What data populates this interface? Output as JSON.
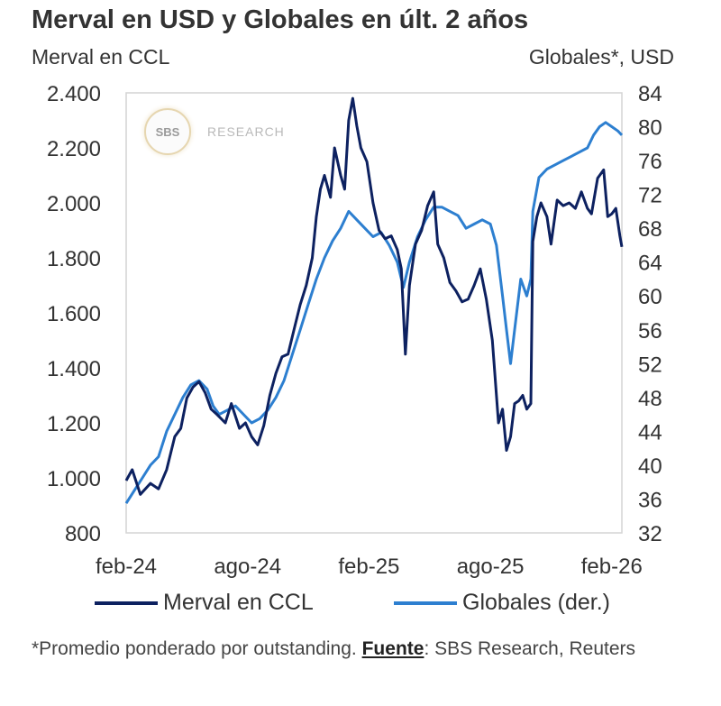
{
  "title": "Merval en USD y Globales en últ. 2 años",
  "left_axis_label": "Merval en CCL",
  "right_axis_label": "Globales*, USD",
  "logo": {
    "badge": "SBS",
    "text": "RESEARCH"
  },
  "legend": [
    {
      "label": "Merval en CCL",
      "color": "#0d2160"
    },
    {
      "label": "Globales (der.)",
      "color": "#2d7fd0"
    }
  ],
  "footnote": {
    "prefix": "*Promedio ponderado por outstanding.",
    "source_label": "Fuente",
    "source": ": SBS Research, Reuters"
  },
  "chart_data": {
    "type": "line",
    "x_ticks": [
      "feb-24",
      "ago-24",
      "feb-25",
      "ago-25",
      "feb-26"
    ],
    "x_range": [
      0,
      24.5
    ],
    "y_left": {
      "min": 800,
      "max": 2400,
      "ticks": [
        "800",
        "1.000",
        "1.200",
        "1.400",
        "1.600",
        "1.800",
        "2.000",
        "2.200",
        "2.400"
      ]
    },
    "y_right": {
      "min": 32,
      "max": 84,
      "ticks": [
        "32",
        "36",
        "40",
        "44",
        "48",
        "52",
        "56",
        "60",
        "64",
        "68",
        "72",
        "76",
        "80",
        "84"
      ]
    },
    "grid": false,
    "series": [
      {
        "name": "Merval en CCL",
        "axis": "left",
        "color": "#0d2160",
        "points": [
          [
            0,
            990
          ],
          [
            0.3,
            1030
          ],
          [
            0.7,
            940
          ],
          [
            1.2,
            980
          ],
          [
            1.6,
            960
          ],
          [
            2.0,
            1030
          ],
          [
            2.4,
            1150
          ],
          [
            2.7,
            1180
          ],
          [
            3.0,
            1290
          ],
          [
            3.3,
            1330
          ],
          [
            3.6,
            1350
          ],
          [
            3.9,
            1310
          ],
          [
            4.2,
            1250
          ],
          [
            4.5,
            1230
          ],
          [
            4.9,
            1200
          ],
          [
            5.2,
            1270
          ],
          [
            5.6,
            1180
          ],
          [
            5.9,
            1200
          ],
          [
            6.2,
            1150
          ],
          [
            6.5,
            1120
          ],
          [
            6.8,
            1190
          ],
          [
            7.1,
            1300
          ],
          [
            7.4,
            1380
          ],
          [
            7.7,
            1440
          ],
          [
            8.0,
            1450
          ],
          [
            8.3,
            1540
          ],
          [
            8.6,
            1630
          ],
          [
            8.9,
            1700
          ],
          [
            9.2,
            1800
          ],
          [
            9.4,
            1950
          ],
          [
            9.6,
            2050
          ],
          [
            9.8,
            2100
          ],
          [
            10.1,
            2020
          ],
          [
            10.3,
            2200
          ],
          [
            10.6,
            2100
          ],
          [
            10.8,
            2050
          ],
          [
            11.0,
            2300
          ],
          [
            11.2,
            2380
          ],
          [
            11.4,
            2280
          ],
          [
            11.6,
            2200
          ],
          [
            11.9,
            2150
          ],
          [
            12.2,
            2000
          ],
          [
            12.5,
            1900
          ],
          [
            12.8,
            1870
          ],
          [
            13.1,
            1880
          ],
          [
            13.4,
            1830
          ],
          [
            13.6,
            1760
          ],
          [
            13.8,
            1450
          ],
          [
            14.0,
            1700
          ],
          [
            14.3,
            1850
          ],
          [
            14.6,
            1900
          ],
          [
            14.9,
            1990
          ],
          [
            15.2,
            2040
          ],
          [
            15.4,
            1850
          ],
          [
            15.7,
            1800
          ],
          [
            16.0,
            1710
          ],
          [
            16.3,
            1680
          ],
          [
            16.6,
            1640
          ],
          [
            16.9,
            1650
          ],
          [
            17.2,
            1700
          ],
          [
            17.5,
            1760
          ],
          [
            17.8,
            1650
          ],
          [
            18.1,
            1500
          ],
          [
            18.4,
            1200
          ],
          [
            18.6,
            1250
          ],
          [
            18.8,
            1100
          ],
          [
            19.0,
            1150
          ],
          [
            19.2,
            1270
          ],
          [
            19.4,
            1280
          ],
          [
            19.6,
            1300
          ],
          [
            19.8,
            1250
          ],
          [
            20.0,
            1270
          ],
          [
            20.1,
            1860
          ],
          [
            20.3,
            1950
          ],
          [
            20.5,
            2000
          ],
          [
            20.8,
            1950
          ],
          [
            21.0,
            1850
          ],
          [
            21.3,
            2010
          ],
          [
            21.6,
            1990
          ],
          [
            21.9,
            2000
          ],
          [
            22.2,
            1980
          ],
          [
            22.5,
            2040
          ],
          [
            22.8,
            1980
          ],
          [
            23.0,
            1960
          ],
          [
            23.3,
            2090
          ],
          [
            23.6,
            2120
          ],
          [
            23.8,
            1950
          ],
          [
            24.0,
            1960
          ],
          [
            24.2,
            1980
          ],
          [
            24.4,
            1880
          ],
          [
            24.5,
            1840
          ]
        ]
      },
      {
        "name": "Globales (der.)",
        "axis": "right",
        "color": "#2d7fd0",
        "points": [
          [
            0,
            35.5
          ],
          [
            0.4,
            37
          ],
          [
            0.8,
            38.5
          ],
          [
            1.2,
            40
          ],
          [
            1.6,
            41
          ],
          [
            2.0,
            44
          ],
          [
            2.4,
            46
          ],
          [
            2.8,
            48
          ],
          [
            3.2,
            49.5
          ],
          [
            3.6,
            50
          ],
          [
            4.0,
            49
          ],
          [
            4.3,
            47
          ],
          [
            4.6,
            46
          ],
          [
            5.0,
            46.5
          ],
          [
            5.4,
            47
          ],
          [
            5.8,
            46
          ],
          [
            6.2,
            45
          ],
          [
            6.6,
            45.5
          ],
          [
            7.0,
            46.5
          ],
          [
            7.4,
            48
          ],
          [
            7.8,
            50
          ],
          [
            8.2,
            53
          ],
          [
            8.6,
            56
          ],
          [
            9.0,
            59
          ],
          [
            9.4,
            62
          ],
          [
            9.8,
            64.5
          ],
          [
            10.2,
            66.5
          ],
          [
            10.6,
            68
          ],
          [
            11.0,
            70
          ],
          [
            11.4,
            69
          ],
          [
            11.8,
            68
          ],
          [
            12.2,
            67
          ],
          [
            12.6,
            67.5
          ],
          [
            13.0,
            66
          ],
          [
            13.4,
            64
          ],
          [
            13.7,
            61
          ],
          [
            14.0,
            64
          ],
          [
            14.4,
            67
          ],
          [
            14.8,
            69
          ],
          [
            15.2,
            70.5
          ],
          [
            15.6,
            70.5
          ],
          [
            16.0,
            70
          ],
          [
            16.4,
            69.5
          ],
          [
            16.8,
            68
          ],
          [
            17.2,
            68.5
          ],
          [
            17.6,
            69
          ],
          [
            18.0,
            68.5
          ],
          [
            18.3,
            66
          ],
          [
            18.6,
            60
          ],
          [
            18.8,
            56
          ],
          [
            19.0,
            52
          ],
          [
            19.2,
            56
          ],
          [
            19.5,
            62
          ],
          [
            19.8,
            60
          ],
          [
            20.0,
            62
          ],
          [
            20.1,
            70
          ],
          [
            20.4,
            74
          ],
          [
            20.8,
            75
          ],
          [
            21.2,
            75.5
          ],
          [
            21.6,
            76
          ],
          [
            22.0,
            76.5
          ],
          [
            22.4,
            77
          ],
          [
            22.8,
            77.5
          ],
          [
            23.1,
            79
          ],
          [
            23.4,
            80
          ],
          [
            23.7,
            80.5
          ],
          [
            24.0,
            80
          ],
          [
            24.3,
            79.5
          ],
          [
            24.5,
            79
          ]
        ]
      }
    ]
  }
}
